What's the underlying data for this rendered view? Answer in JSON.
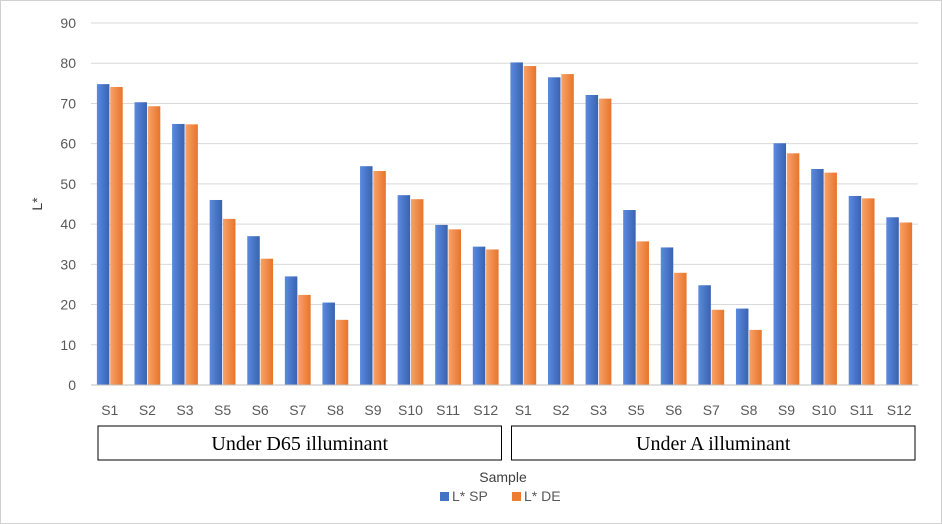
{
  "chart_data": {
    "type": "bar",
    "title": "",
    "xlabel": "Sample",
    "ylabel": "L*",
    "ylim": [
      0,
      90
    ],
    "yticks": [
      0,
      10,
      20,
      30,
      40,
      50,
      60,
      70,
      80,
      90
    ],
    "grid": true,
    "legend_position": "bottom",
    "categories": [
      "S1",
      "S2",
      "S3",
      "S5",
      "S6",
      "S7",
      "S8",
      "S9",
      "S10",
      "S11",
      "S12",
      "S1",
      "S2",
      "S3",
      "S5",
      "S6",
      "S7",
      "S8",
      "S9",
      "S10",
      "S11",
      "S12"
    ],
    "series": [
      {
        "name": "L* SP",
        "color": "#4472C4",
        "values": [
          74.8,
          70.3,
          64.9,
          46.0,
          37.0,
          27.0,
          20.5,
          54.4,
          47.2,
          39.8,
          34.4,
          80.2,
          76.5,
          72.1,
          43.5,
          34.2,
          24.8,
          19.0,
          60.1,
          53.7,
          47.0,
          41.7
        ]
      },
      {
        "name": "L* DE",
        "color": "#ED7D31",
        "values": [
          74.1,
          69.3,
          64.8,
          41.3,
          31.4,
          22.4,
          16.2,
          53.2,
          46.2,
          38.7,
          33.7,
          79.3,
          77.3,
          71.2,
          35.7,
          27.9,
          18.7,
          13.7,
          57.6,
          52.8,
          46.4,
          40.4
        ]
      }
    ],
    "groups": [
      {
        "label": "Under D65 illuminant",
        "start": 0,
        "end": 10
      },
      {
        "label": "Under A illuminant",
        "start": 11,
        "end": 21
      }
    ],
    "gradient_colors": {
      "sp_light": "#5A8AE0",
      "sp_dark": "#3A62B0",
      "de_light": "#F7A26A",
      "de_dark": "#E8742A",
      "grid": "#D9D9D9",
      "axis": "#BFBFBF",
      "frame": "#D0D0D0"
    }
  }
}
